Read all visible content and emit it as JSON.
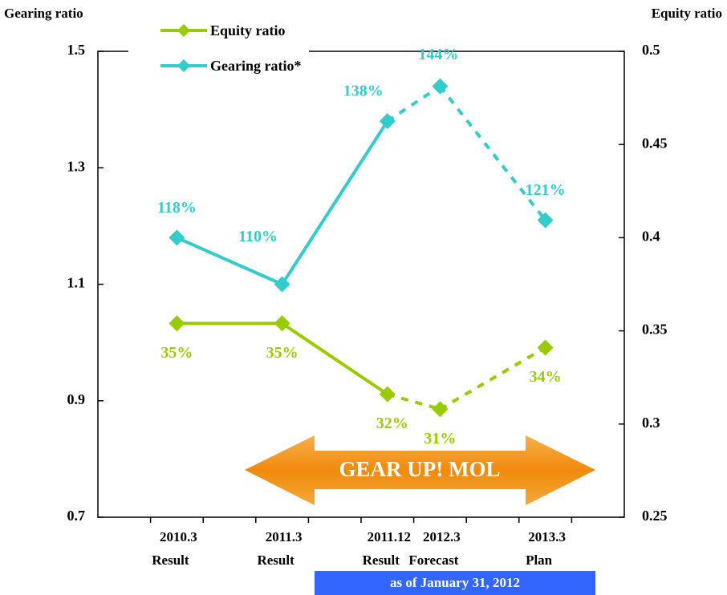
{
  "chart_data": {
    "type": "line",
    "y_axis_label": "Gearing ratio",
    "y2_axis_label": "Equity ratio",
    "categories": [
      null,
      "2010.3",
      null,
      "2011.3",
      null,
      "2011.12",
      "2012.3",
      null,
      "2013.3",
      null
    ],
    "category_sublabels": [
      null,
      "Result",
      null,
      "Result",
      null,
      "Result",
      "Forecast",
      null,
      "Plan",
      null
    ],
    "ylim": [
      0.7,
      1.5
    ],
    "yticks": [
      0.7,
      0.9,
      1.1,
      1.3,
      1.5
    ],
    "y2lim": [
      0.25,
      0.5
    ],
    "y2ticks": [
      0.25,
      0.3,
      0.35,
      0.4,
      0.45,
      0.5
    ],
    "dashed_from": 5,
    "series": [
      {
        "name": "Equity ratio",
        "color": "#99cc00",
        "axis": "y2",
        "values": [
          null,
          0.354,
          null,
          0.354,
          null,
          0.316,
          0.308,
          null,
          0.341,
          null
        ],
        "value_labels": [
          null,
          "35%",
          null,
          "35%",
          null,
          "32%",
          "31%",
          null,
          "34%",
          null
        ]
      },
      {
        "name": "Gearing ratio*",
        "color": "#33cccc",
        "values": [
          null,
          1.18,
          null,
          1.1,
          null,
          1.38,
          1.44,
          null,
          1.21,
          null
        ],
        "value_labels": [
          null,
          "118%",
          null,
          "110%",
          null,
          "138%",
          "144%",
          null,
          "121%",
          null
        ]
      }
    ],
    "annotations": [
      "GEAR UP! MOL",
      "as of January 31, 2012"
    ]
  }
}
